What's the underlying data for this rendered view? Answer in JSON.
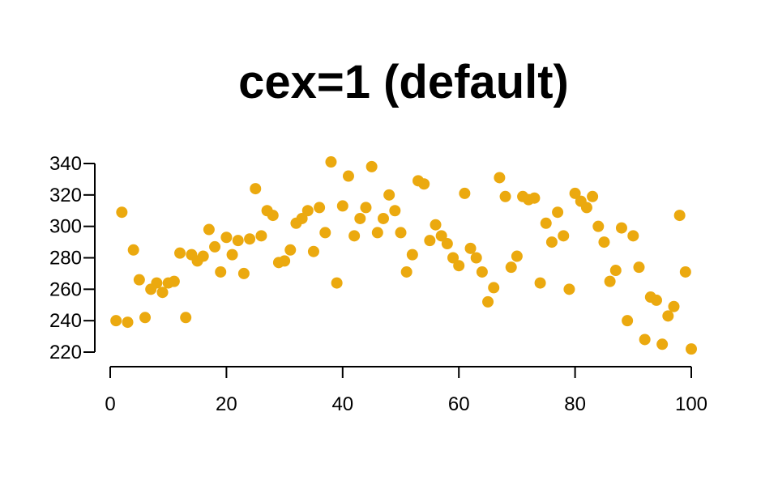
{
  "chart_data": {
    "type": "scatter",
    "title": "cex=1 (default)",
    "xlabel": "",
    "ylabel": "",
    "xlim": [
      0,
      100
    ],
    "ylim": [
      220,
      340
    ],
    "x_ticks": [
      0,
      20,
      40,
      60,
      80,
      100
    ],
    "y_ticks": [
      220,
      240,
      260,
      280,
      300,
      320,
      340
    ],
    "x_tick_labels": [
      "0",
      "20",
      "40",
      "60",
      "80",
      "100"
    ],
    "y_tick_labels": [
      "220",
      "240",
      "260",
      "280",
      "300",
      "320",
      "340"
    ],
    "grid": false,
    "point_color": "#EBA90F",
    "series": [
      {
        "x": [
          1,
          2,
          3,
          4,
          5,
          6,
          7,
          8,
          9,
          10,
          11,
          12,
          13,
          14,
          15,
          16,
          17,
          18,
          19,
          20,
          21,
          22,
          23,
          24,
          25,
          26,
          27,
          28,
          29,
          30,
          31,
          32,
          33,
          34,
          35,
          36,
          37,
          38,
          39,
          40,
          41,
          42,
          43,
          44,
          45,
          46,
          47,
          48,
          49,
          50,
          51,
          52,
          53,
          54,
          55,
          56,
          57,
          58,
          59,
          60,
          61,
          62,
          63,
          64,
          65,
          66,
          67,
          68,
          69,
          70,
          71,
          72,
          73,
          74,
          75,
          76,
          77,
          78,
          79,
          80,
          81,
          82,
          83,
          84,
          85,
          86,
          87,
          88,
          89,
          90,
          91,
          92,
          93,
          94,
          95,
          96,
          97,
          98,
          99,
          100
        ],
        "y": [
          240,
          309,
          239,
          285,
          266,
          242,
          260,
          264,
          258,
          264,
          265,
          283,
          242,
          282,
          278,
          281,
          298,
          287,
          271,
          293,
          282,
          291,
          270,
          292,
          324,
          294,
          310,
          307,
          277,
          278,
          285,
          302,
          305,
          310,
          284,
          312,
          296,
          341,
          264,
          313,
          332,
          294,
          305,
          312,
          338,
          296,
          305,
          320,
          310,
          296,
          271,
          282,
          329,
          327,
          291,
          301,
          294,
          289,
          280,
          275,
          321,
          286,
          280,
          271,
          252,
          261,
          331,
          319,
          274,
          281,
          319,
          317,
          318,
          264,
          302,
          290,
          309,
          294,
          260,
          321,
          316,
          312,
          319,
          300,
          290,
          265,
          272,
          299,
          240,
          294,
          274,
          228,
          255,
          253,
          225,
          243,
          249,
          307,
          271,
          222
        ]
      }
    ]
  }
}
